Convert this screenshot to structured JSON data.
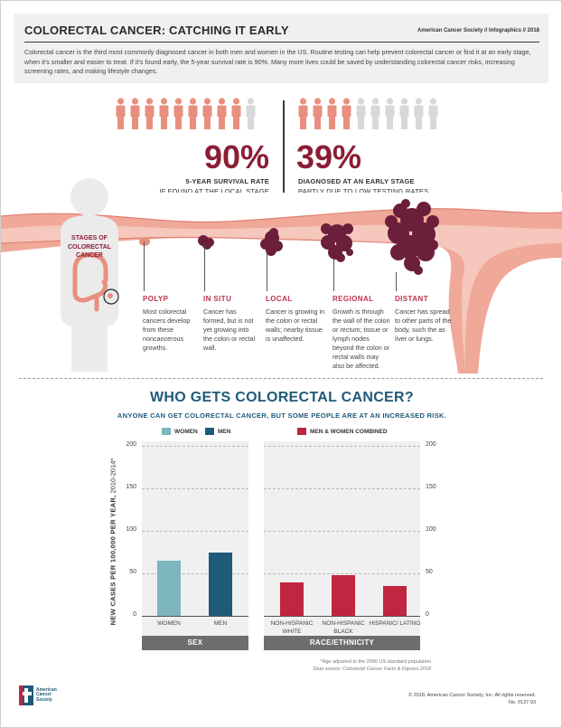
{
  "header": {
    "title": "COLORECTAL CANCER: CATCHING IT EARLY",
    "source": "American Cancer Society  //  Infographics // 2018",
    "intro": "Colorectal cancer is the third most commonly diagnosed cancer in both men and women in the US. Routine testing can help prevent colorectal cancer or find it at an early stage, when it's smaller and easier to treat. If it's found early, the 5-year survival rate is 90%. Many more lives could be saved by understanding colorectal cancer risks, increasing screening rates, and making lifestyle changes."
  },
  "stats": {
    "survival": {
      "percent": "90%",
      "value": 90,
      "line1": "5-YEAR SURVIVAL RATE",
      "line2": "IF FOUND AT THE LOCAL STAGE"
    },
    "diagnosed": {
      "percent": "39%",
      "value": 39,
      "line1": "DIAGNOSED AT AN EARLY STAGE",
      "line2": "PARTLY DUE TO LOW TESTING RATES"
    }
  },
  "colors": {
    "highlight_figure": "#e88f7f",
    "muted_figure": "#d8d8d8",
    "dark_red": "#8a1e35",
    "stage_red": "#c0314e",
    "tumor": "#6b1f3a",
    "colon": "#f0a898",
    "women": "#7db6bc",
    "men": "#1f5a7a",
    "combined": "#c0263f",
    "panel_bg": "#f0f0f0",
    "band": "#6d6d6d"
  },
  "stages_label": "STAGES OF COLORECTAL CANCER",
  "stages": [
    {
      "title": "POLYP",
      "desc": "Most colorectal cancers develop from these noncancerous growths."
    },
    {
      "title": "IN SITU",
      "desc": "Cancer has formed, but is not yet growing into the colon or rectal wall."
    },
    {
      "title": "LOCAL",
      "desc": "Cancer is growing in the colon or rectal walls; nearby tissue is unaffected."
    },
    {
      "title": "REGIONAL",
      "desc": "Growth is through the wall of the colon or rectum; tissue or lymph nodes beyond the colon or rectal walls may also be affected."
    },
    {
      "title": "DISTANT",
      "desc": "Cancer has spread to other parts of the body, such the as liver or lungs."
    }
  ],
  "who": {
    "title": "WHO GETS COLORECTAL CANCER?",
    "subtitle": "ANYONE CAN GET COLORECTAL CANCER, BUT SOME PEOPLE ARE AT AN INCREASED RISK."
  },
  "chart_data": {
    "type": "bar",
    "ylabel_bold": "NEW CASES PER 100,000 PER YEAR,",
    "ylabel_rest": " 2010-2014*",
    "ylim": [
      0,
      200
    ],
    "yticks": [
      "0",
      "50",
      "100",
      "150",
      "200"
    ],
    "grid": true,
    "panels": [
      {
        "group_label": "SEX",
        "legend": [
          {
            "name": "WOMEN",
            "color": "#7db6bc"
          },
          {
            "name": "MEN",
            "color": "#1f5a7a"
          }
        ],
        "categories": [
          "WOMEN",
          "MEN"
        ],
        "values": [
          65,
          75
        ],
        "colors": [
          "#7db6bc",
          "#1f5a7a"
        ]
      },
      {
        "group_label": "RACE/ETHNICITY",
        "legend": [
          {
            "name": "MEN & WOMEN COMBINED",
            "color": "#c0263f"
          }
        ],
        "categories": [
          "NON-HISPANIC WHITE",
          "NON-HISPANIC BLACK",
          "HISPANIC/ LATINO"
        ],
        "values": [
          39,
          48,
          35
        ],
        "colors": [
          "#c0263f",
          "#c0263f",
          "#c0263f"
        ]
      }
    ]
  },
  "footer": {
    "note1": "*Age adjusted to the 2000 US standard population",
    "note2_prefix": "Data source: ",
    "note2_source": "Colorectal Cancer Facts & Figures 2018",
    "logo_text": "American Cancer Society",
    "copyright": "© 2018, American Cancer Society, Inc. All rights reserved.",
    "doc_number": "No. 0127.93"
  }
}
